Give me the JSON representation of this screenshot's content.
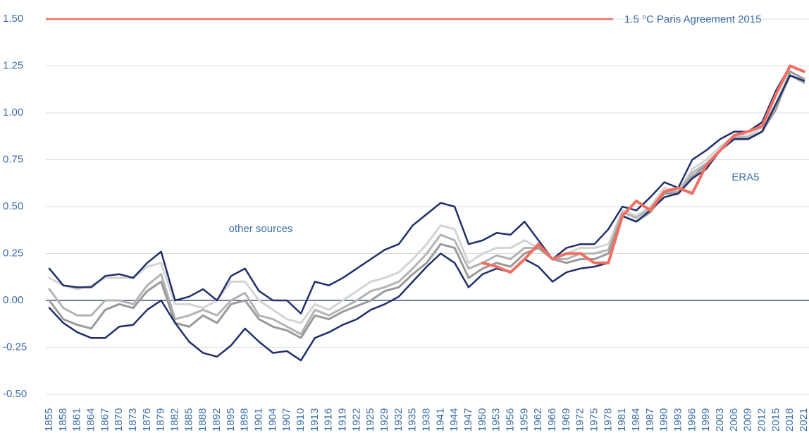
{
  "chart_data": {
    "type": "line",
    "categories": [
      "1855",
      "1858",
      "1861",
      "1864",
      "1867",
      "1870",
      "1873",
      "1876",
      "1879",
      "1882",
      "1885",
      "1888",
      "1892",
      "1895",
      "1898",
      "1901",
      "1904",
      "1907",
      "1910",
      "1913",
      "1916",
      "1919",
      "1922",
      "1925",
      "1929",
      "1932",
      "1935",
      "1938",
      "1941",
      "1944",
      "1947",
      "1950",
      "1953",
      "1956",
      "1959",
      "1962",
      "1966",
      "1969",
      "1972",
      "1975",
      "1978",
      "1981",
      "1984",
      "1987",
      "1990",
      "1993",
      "1996",
      "1999",
      "2003",
      "2006",
      "2009",
      "2012",
      "2015",
      "2018",
      "2021"
    ],
    "series": [
      {
        "color": "#d4d4d4",
        "width": 3,
        "values": [
          0.12,
          0.08,
          0.06,
          0.08,
          0.12,
          0.12,
          0.12,
          0.18,
          0.2,
          -0.02,
          -0.02,
          -0.04,
          0.0,
          0.1,
          0.1,
          0.0,
          -0.05,
          -0.1,
          -0.12,
          -0.02,
          -0.05,
          0.0,
          0.05,
          0.1,
          0.12,
          0.15,
          0.22,
          0.3,
          0.4,
          0.38,
          0.2,
          0.25,
          0.28,
          0.28,
          0.32,
          0.28,
          0.22,
          0.25,
          0.28,
          0.28,
          0.3,
          0.48,
          0.45,
          0.5,
          0.6,
          0.58,
          0.7,
          0.75,
          0.82,
          0.88,
          0.88,
          0.92,
          1.05,
          1.22,
          1.18
        ]
      },
      {
        "color": "#b3b3b3",
        "width": 3,
        "values": [
          0.06,
          -0.04,
          -0.08,
          -0.08,
          0.0,
          0.0,
          -0.02,
          0.08,
          0.14,
          -0.1,
          -0.08,
          -0.05,
          -0.08,
          0.0,
          0.04,
          -0.08,
          -0.1,
          -0.14,
          -0.18,
          -0.05,
          -0.08,
          -0.04,
          0.0,
          0.05,
          0.07,
          0.1,
          0.17,
          0.25,
          0.35,
          0.32,
          0.17,
          0.2,
          0.24,
          0.22,
          0.28,
          0.28,
          0.22,
          0.22,
          0.25,
          0.25,
          0.27,
          0.47,
          0.44,
          0.49,
          0.58,
          0.58,
          0.68,
          0.73,
          0.8,
          0.87,
          0.87,
          0.9,
          1.03,
          1.2,
          1.16
        ]
      },
      {
        "color": "#9a9a9a",
        "width": 3,
        "values": [
          0.0,
          -0.1,
          -0.13,
          -0.15,
          -0.05,
          -0.02,
          -0.04,
          0.05,
          0.1,
          -0.12,
          -0.14,
          -0.08,
          -0.12,
          -0.02,
          0.0,
          -0.1,
          -0.14,
          -0.16,
          -0.2,
          -0.08,
          -0.1,
          -0.06,
          -0.03,
          0.0,
          0.05,
          0.07,
          0.14,
          0.2,
          0.3,
          0.28,
          0.12,
          0.17,
          0.2,
          0.18,
          0.25,
          0.28,
          0.22,
          0.2,
          0.22,
          0.22,
          0.25,
          0.45,
          0.42,
          0.47,
          0.57,
          0.57,
          0.66,
          0.72,
          0.8,
          0.86,
          0.86,
          0.9,
          1.02,
          1.22,
          1.18
        ]
      },
      {
        "color": "#1f2f6b",
        "width": 2.5,
        "values": [
          0.17,
          0.08,
          0.07,
          0.07,
          0.13,
          0.14,
          0.12,
          0.2,
          0.26,
          0.0,
          0.02,
          0.06,
          0.0,
          0.13,
          0.17,
          0.05,
          0.0,
          0.0,
          -0.07,
          0.1,
          0.08,
          0.12,
          0.17,
          0.22,
          0.27,
          0.3,
          0.4,
          0.46,
          0.52,
          0.5,
          0.3,
          0.32,
          0.36,
          0.35,
          0.42,
          0.32,
          0.22,
          0.28,
          0.3,
          0.3,
          0.38,
          0.5,
          0.48,
          0.55,
          0.63,
          0.6,
          0.75,
          0.8,
          0.86,
          0.9,
          0.9,
          0.95,
          1.12,
          1.25,
          1.22
        ]
      },
      {
        "color": "#1f2f6b",
        "width": 2.5,
        "values": [
          -0.04,
          -0.12,
          -0.17,
          -0.2,
          -0.2,
          -0.14,
          -0.13,
          -0.05,
          0.0,
          -0.12,
          -0.22,
          -0.28,
          -0.3,
          -0.24,
          -0.15,
          -0.22,
          -0.28,
          -0.27,
          -0.32,
          -0.2,
          -0.17,
          -0.13,
          -0.1,
          -0.05,
          -0.02,
          0.02,
          0.1,
          0.18,
          0.25,
          0.2,
          0.07,
          0.14,
          0.17,
          0.15,
          0.22,
          0.18,
          0.1,
          0.15,
          0.17,
          0.18,
          0.2,
          0.45,
          0.42,
          0.48,
          0.55,
          0.57,
          0.65,
          0.7,
          0.8,
          0.86,
          0.86,
          0.9,
          1.05,
          1.2,
          1.17
        ]
      },
      {
        "color": "#f26e61",
        "width": 4,
        "values": [
          null,
          null,
          null,
          null,
          null,
          null,
          null,
          null,
          null,
          null,
          null,
          null,
          null,
          null,
          null,
          null,
          null,
          null,
          null,
          null,
          null,
          null,
          null,
          null,
          null,
          null,
          null,
          null,
          null,
          null,
          null,
          0.2,
          0.18,
          0.15,
          0.22,
          0.3,
          0.22,
          0.25,
          0.25,
          0.2,
          0.2,
          0.45,
          0.53,
          0.48,
          0.58,
          0.6,
          0.57,
          0.72,
          0.8,
          0.88,
          0.9,
          0.93,
          1.1,
          1.25,
          1.22
        ]
      }
    ],
    "ylim": [
      -0.5,
      1.5
    ],
    "yticks": [
      {
        "value": -0.5,
        "label": "-0.50"
      },
      {
        "value": -0.25,
        "label": "-0.25"
      },
      {
        "value": 0,
        "label": "0.00"
      },
      {
        "value": 0.25,
        "label": "0.25"
      },
      {
        "value": 0.5,
        "label": "0.50"
      },
      {
        "value": 0.75,
        "label": "0.75"
      },
      {
        "value": 1.0,
        "label": "1.00"
      },
      {
        "value": 1.25,
        "label": "1.25"
      },
      {
        "value": 1.5,
        "label": "1.50"
      }
    ],
    "grid": true,
    "reference_line": {
      "value": 1.5,
      "label": "1.5 °C Paris Agreement 2015",
      "color": "#f07060"
    },
    "zero_line_color": "#1f2f6b",
    "annotations": [
      "other sources",
      "ERA5"
    ]
  }
}
